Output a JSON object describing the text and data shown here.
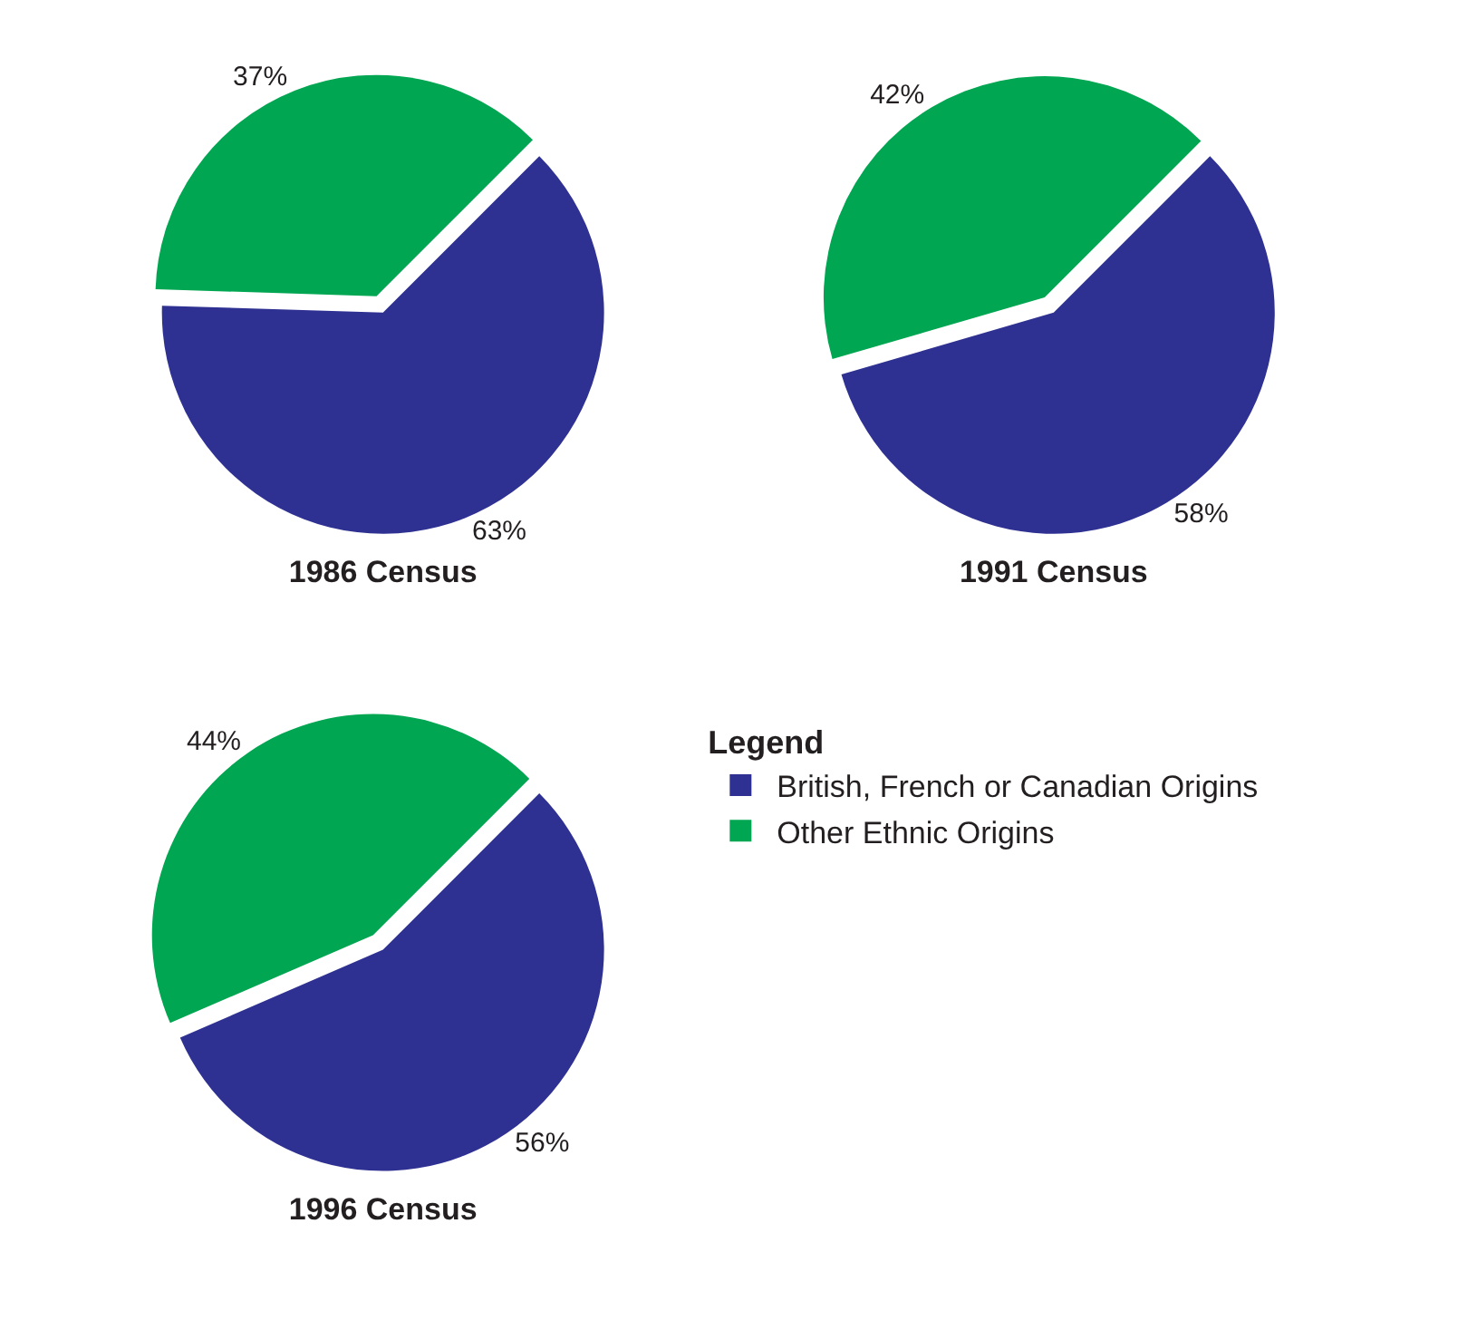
{
  "chart_data": [
    {
      "type": "pie",
      "title": "1986 Census",
      "categories": [
        "British, French or Canadian Origins",
        "Other Ethnic Origins"
      ],
      "values": [
        63,
        37
      ],
      "colors": [
        "#2e3192",
        "#00a651"
      ],
      "value_labels": [
        "63%",
        "37%"
      ],
      "legend": "right",
      "legend_title": "Legend"
    },
    {
      "type": "pie",
      "title": "1991 Census",
      "categories": [
        null,
        null
      ],
      "values": [
        58,
        42
      ],
      "colors": [
        "#2e3192",
        "#00a651"
      ],
      "value_labels": [
        "58%",
        "42%"
      ]
    },
    {
      "type": "pie",
      "title": "1996 Census",
      "categories": [
        null,
        null
      ],
      "values": [
        56,
        44
      ],
      "colors": [
        "#2e3192",
        "#00a651"
      ],
      "value_labels": [
        "56%",
        "44%"
      ]
    }
  ]
}
